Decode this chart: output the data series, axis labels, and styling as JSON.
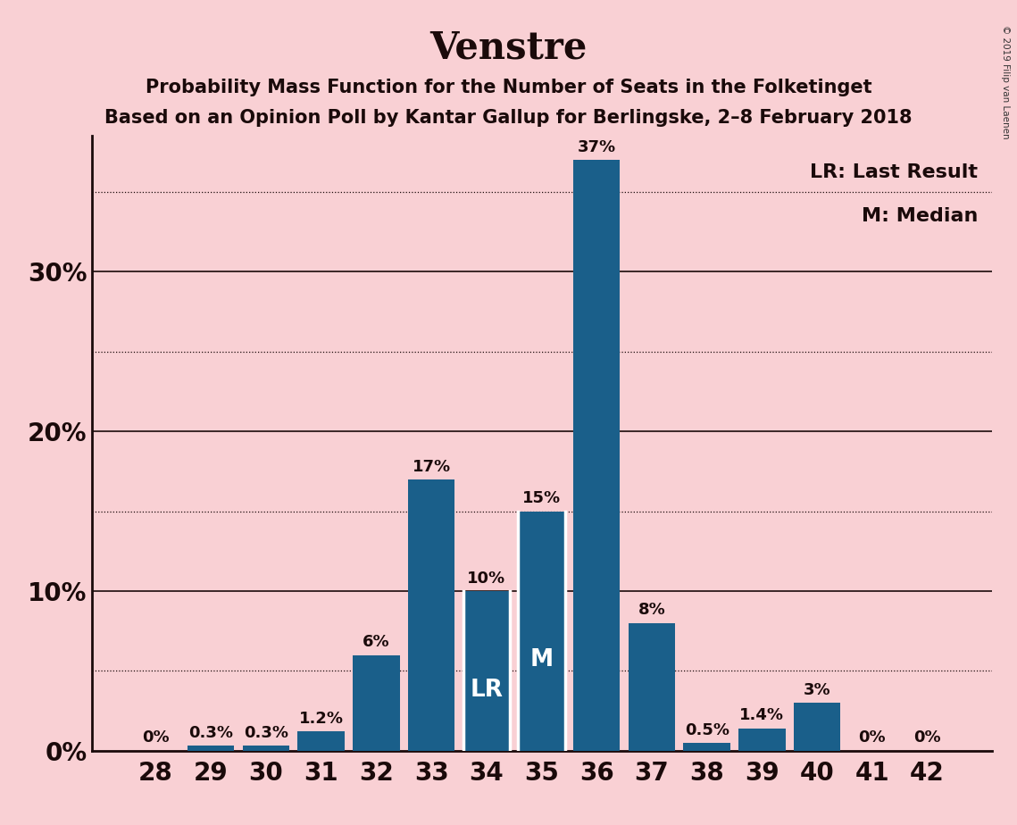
{
  "title": "Venstre",
  "subtitle1": "Probability Mass Function for the Number of Seats in the Folketinget",
  "subtitle2": "Based on an Opinion Poll by Kantar Gallup for Berlingske, 2–8 February 2018",
  "copyright": "© 2019 Filip van Laenen",
  "categories": [
    28,
    29,
    30,
    31,
    32,
    33,
    34,
    35,
    36,
    37,
    38,
    39,
    40,
    41,
    42
  ],
  "values": [
    0.0,
    0.3,
    0.3,
    1.2,
    6.0,
    17.0,
    10.0,
    15.0,
    37.0,
    8.0,
    0.5,
    1.4,
    3.0,
    0.0,
    0.0
  ],
  "labels": [
    "0%",
    "0.3%",
    "0.3%",
    "1.2%",
    "6%",
    "17%",
    "10%",
    "15%",
    "37%",
    "8%",
    "0.5%",
    "1.4%",
    "3%",
    "0%",
    "0%"
  ],
  "bar_color": "#1a5f8a",
  "background_color": "#f9d0d4",
  "text_color": "#1a0a0a",
  "bar_label_color_dark": "#1a0a0a",
  "bar_label_color_light": "#ffffff",
  "lr_seat": 34,
  "median_seat": 35,
  "lr_label": "LR",
  "median_label": "M",
  "legend_lr": "LR: Last Result",
  "legend_m": "M: Median",
  "ylim": [
    0,
    38.5
  ],
  "solid_yticks": [
    0,
    10,
    20,
    30
  ],
  "solid_ytick_labels": [
    "0%",
    "10%",
    "20%",
    "30%"
  ],
  "dotted_yticks": [
    5,
    15,
    25,
    35
  ],
  "grid_color": "#1a0a0a",
  "title_fontsize": 30,
  "subtitle_fontsize": 15,
  "axis_tick_fontsize": 20,
  "bar_label_fontsize": 13,
  "bar_inner_label_fontsize": 19
}
